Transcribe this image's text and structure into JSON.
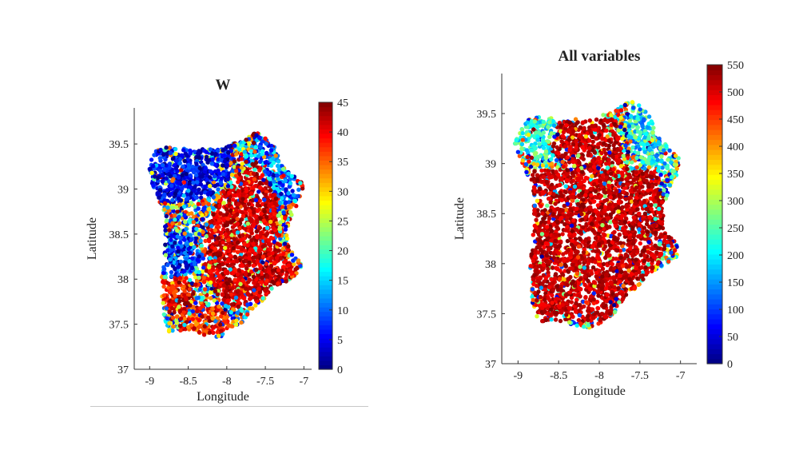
{
  "chart_data": [
    {
      "type": "scatter",
      "title": "W",
      "xlabel": "Longitude",
      "ylabel": "Latitude",
      "xlim": [
        -9.2,
        -6.9
      ],
      "ylim": [
        37.0,
        39.9
      ],
      "xticks": [
        "-9",
        "-8.5",
        "-8",
        "-7.5",
        "-7"
      ],
      "yticks": [
        "37",
        "37.5",
        "38",
        "38.5",
        "39",
        "39.5"
      ],
      "colorbar": {
        "colormap": "jet",
        "range": [
          0,
          45
        ],
        "ticks": [
          "0",
          "5",
          "10",
          "15",
          "20",
          "25",
          "30",
          "35",
          "40",
          "45"
        ]
      },
      "grid": false,
      "legend": "none",
      "region_outline": [
        [
          -8.92,
          39.42
        ],
        [
          -8.8,
          39.47
        ],
        [
          -8.55,
          39.45
        ],
        [
          -8.42,
          39.42
        ],
        [
          -8.3,
          39.45
        ],
        [
          -8.05,
          39.44
        ],
        [
          -7.95,
          39.5
        ],
        [
          -7.8,
          39.53
        ],
        [
          -7.62,
          39.63
        ],
        [
          -7.5,
          39.58
        ],
        [
          -7.35,
          39.45
        ],
        [
          -7.32,
          39.3
        ],
        [
          -7.12,
          39.14
        ],
        [
          -7.0,
          39.05
        ],
        [
          -7.05,
          38.88
        ],
        [
          -7.15,
          38.72
        ],
        [
          -7.22,
          38.55
        ],
        [
          -7.2,
          38.35
        ],
        [
          -7.05,
          38.2
        ],
        [
          -7.02,
          38.08
        ],
        [
          -7.22,
          37.98
        ],
        [
          -7.4,
          37.9
        ],
        [
          -7.55,
          37.75
        ],
        [
          -7.7,
          37.65
        ],
        [
          -7.8,
          37.52
        ],
        [
          -7.95,
          37.42
        ],
        [
          -8.1,
          37.35
        ],
        [
          -8.28,
          37.38
        ],
        [
          -8.45,
          37.42
        ],
        [
          -8.6,
          37.43
        ],
        [
          -8.75,
          37.42
        ],
        [
          -8.82,
          37.6
        ],
        [
          -8.85,
          37.95
        ],
        [
          -8.83,
          38.2
        ],
        [
          -8.8,
          38.45
        ],
        [
          -8.82,
          38.75
        ],
        [
          -8.92,
          38.95
        ],
        [
          -9.05,
          39.2
        ]
      ],
      "value_regions": [
        {
          "polygon": [
            [
              -8.92,
              39.42
            ],
            [
              -8.3,
              39.45
            ],
            [
              -7.95,
              39.5
            ],
            [
              -7.9,
              39.2
            ],
            [
              -8.15,
              38.95
            ],
            [
              -8.5,
              38.85
            ],
            [
              -8.85,
              38.85
            ],
            [
              -9.05,
              39.2
            ]
          ],
          "value_range": [
            0,
            10
          ]
        },
        {
          "polygon": [
            [
              -7.62,
              39.63
            ],
            [
              -7.35,
              39.45
            ],
            [
              -7.12,
              39.14
            ],
            [
              -7.05,
              38.88
            ],
            [
              -7.3,
              38.8
            ],
            [
              -7.6,
              39.0
            ],
            [
              -7.75,
              39.3
            ]
          ],
          "value_range": [
            2,
            18
          ]
        },
        {
          "polygon": [
            [
              -8.1,
              38.9
            ],
            [
              -7.6,
              39.35
            ],
            [
              -7.35,
              38.9
            ],
            [
              -7.3,
              38.3
            ],
            [
              -7.05,
              38.1
            ],
            [
              -7.6,
              37.75
            ],
            [
              -8.0,
              37.65
            ],
            [
              -8.3,
              38.1
            ],
            [
              -8.25,
              38.6
            ]
          ],
          "value_range": [
            38,
            45
          ]
        },
        {
          "polygon": [
            [
              -8.8,
              38.5
            ],
            [
              -8.4,
              38.55
            ],
            [
              -8.3,
              38.2
            ],
            [
              -8.55,
              37.95
            ],
            [
              -8.83,
              38.05
            ]
          ],
          "value_range": [
            0,
            15
          ]
        },
        {
          "polygon": [
            [
              -8.85,
              38.0
            ],
            [
              -8.5,
              38.05
            ],
            [
              -8.4,
              37.75
            ],
            [
              -8.6,
              37.55
            ],
            [
              -8.82,
              37.7
            ]
          ],
          "value_range": [
            35,
            45
          ]
        },
        {
          "polygon": [
            [
              -8.5,
              37.7
            ],
            [
              -8.05,
              37.7
            ],
            [
              -7.9,
              37.45
            ],
            [
              -8.28,
              37.38
            ],
            [
              -8.6,
              37.45
            ]
          ],
          "value_range": [
            32,
            45
          ]
        }
      ]
    },
    {
      "type": "scatter",
      "title": "All variables",
      "xlabel": "Longitude",
      "ylabel": "Latitude",
      "xlim": [
        -9.2,
        -6.8
      ],
      "ylim": [
        37.0,
        39.9
      ],
      "xticks": [
        "-9",
        "-8.5",
        "-8",
        "-7.5",
        "-7"
      ],
      "yticks": [
        "37",
        "37.5",
        "38",
        "38.5",
        "39",
        "39.5"
      ],
      "colorbar": {
        "colormap": "jet",
        "range": [
          0,
          550
        ],
        "ticks": [
          "0",
          "50",
          "100",
          "150",
          "200",
          "250",
          "300",
          "350",
          "400",
          "450",
          "500",
          "550"
        ]
      },
      "grid": false,
      "legend": "none",
      "region_outline": [
        [
          -8.92,
          39.42
        ],
        [
          -8.8,
          39.47
        ],
        [
          -8.55,
          39.45
        ],
        [
          -8.42,
          39.42
        ],
        [
          -8.3,
          39.45
        ],
        [
          -8.05,
          39.44
        ],
        [
          -7.95,
          39.5
        ],
        [
          -7.8,
          39.53
        ],
        [
          -7.62,
          39.63
        ],
        [
          -7.5,
          39.58
        ],
        [
          -7.35,
          39.45
        ],
        [
          -7.32,
          39.3
        ],
        [
          -7.12,
          39.14
        ],
        [
          -7.0,
          39.05
        ],
        [
          -7.05,
          38.88
        ],
        [
          -7.15,
          38.72
        ],
        [
          -7.22,
          38.55
        ],
        [
          -7.2,
          38.35
        ],
        [
          -7.05,
          38.2
        ],
        [
          -7.02,
          38.08
        ],
        [
          -7.22,
          37.98
        ],
        [
          -7.4,
          37.9
        ],
        [
          -7.55,
          37.75
        ],
        [
          -7.7,
          37.65
        ],
        [
          -7.8,
          37.52
        ],
        [
          -7.95,
          37.42
        ],
        [
          -8.1,
          37.35
        ],
        [
          -8.28,
          37.38
        ],
        [
          -8.45,
          37.42
        ],
        [
          -8.6,
          37.43
        ],
        [
          -8.75,
          37.42
        ],
        [
          -8.82,
          37.6
        ],
        [
          -8.85,
          37.95
        ],
        [
          -8.83,
          38.2
        ],
        [
          -8.8,
          38.45
        ],
        [
          -8.82,
          38.75
        ],
        [
          -8.92,
          38.95
        ],
        [
          -9.05,
          39.2
        ]
      ],
      "value_regions": [
        {
          "polygon": [
            [
              -8.92,
              39.42
            ],
            [
              -8.55,
              39.45
            ],
            [
              -8.5,
              39.1
            ],
            [
              -8.8,
              39.0
            ],
            [
              -9.05,
              39.2
            ]
          ],
          "value_range": [
            150,
            300
          ]
        },
        {
          "polygon": [
            [
              -7.62,
              39.63
            ],
            [
              -7.35,
              39.45
            ],
            [
              -7.12,
              39.14
            ],
            [
              -7.05,
              38.95
            ],
            [
              -7.35,
              38.95
            ],
            [
              -7.65,
              39.2
            ]
          ],
          "value_range": [
            100,
            300
          ]
        },
        {
          "polygon": [
            [
              -8.5,
              39.42
            ],
            [
              -7.8,
              39.45
            ],
            [
              -7.7,
              39.0
            ],
            [
              -8.2,
              38.95
            ],
            [
              -8.6,
              39.1
            ]
          ],
          "value_range": [
            480,
            550
          ]
        },
        {
          "polygon": [
            [
              -8.85,
              38.95
            ],
            [
              -7.3,
              38.95
            ],
            [
              -7.05,
              38.2
            ],
            [
              -7.4,
              37.9
            ],
            [
              -7.95,
              37.42
            ],
            [
              -8.75,
              37.42
            ],
            [
              -8.85,
              38.0
            ]
          ],
          "value_range": [
            480,
            550
          ]
        }
      ]
    }
  ]
}
